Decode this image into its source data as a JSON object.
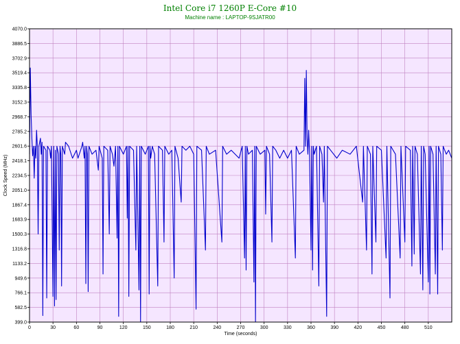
{
  "chart_data": {
    "type": "line",
    "title": "Intel Core i7 1260P E-Core #10",
    "subtitle": "Machine name : LAPTOP-9SJATR00",
    "xlabel": "Time (seconds)",
    "ylabel": "Clock Speed (MHz)",
    "xlim": [
      0,
      540
    ],
    "ylim": [
      399.0,
      4070.0
    ],
    "x_ticks": [
      "0",
      "30",
      "60",
      "90",
      "120",
      "150",
      "180",
      "210",
      "240",
      "270",
      "300",
      "330",
      "360",
      "390",
      "420",
      "450",
      "480",
      "510"
    ],
    "y_ticks": [
      "399.0",
      "582.5",
      "766.1",
      "949.6",
      "1133.2",
      "1316.8",
      "1500.3",
      "1683.9",
      "1867.4",
      "2051.0",
      "2234.5",
      "2418.1",
      "2601.6",
      "2785.2",
      "2968.7",
      "3152.3",
      "3335.8",
      "3519.4",
      "3702.9",
      "3886.5",
      "4070.0"
    ],
    "grid": true,
    "colors": {
      "line": "#0000cc",
      "plot_bg": "#f5e6ff",
      "grid": "#c080c0",
      "title": "#008000"
    },
    "baseline_mhz": 2550,
    "series": [
      {
        "points": [
          [
            0,
            2500
          ],
          [
            1,
            3580
          ],
          [
            2,
            3000
          ],
          [
            3,
            2700
          ],
          [
            4,
            2480
          ],
          [
            5,
            2600
          ],
          [
            6,
            2200
          ],
          [
            7,
            2600
          ],
          [
            8,
            2450
          ],
          [
            9,
            2800
          ],
          [
            10,
            2600
          ],
          [
            11,
            1500
          ],
          [
            12,
            2600
          ],
          [
            14,
            2700
          ],
          [
            15,
            2500
          ],
          [
            16,
            2650
          ],
          [
            17,
            480
          ],
          [
            18,
            2600
          ],
          [
            21,
            2550
          ],
          [
            22,
            700
          ],
          [
            23,
            2600
          ],
          [
            26,
            2550
          ],
          [
            27,
            2450
          ],
          [
            28,
            2600
          ],
          [
            30,
            720
          ],
          [
            31,
            2600
          ],
          [
            32,
            600
          ],
          [
            33,
            2550
          ],
          [
            34,
            680
          ],
          [
            35,
            2600
          ],
          [
            37,
            2500
          ],
          [
            38,
            1300
          ],
          [
            39,
            2600
          ],
          [
            40,
            2500
          ],
          [
            41,
            850
          ],
          [
            42,
            2600
          ],
          [
            45,
            2500
          ],
          [
            46,
            2650
          ],
          [
            50,
            2600
          ],
          [
            55,
            2450
          ],
          [
            60,
            2550
          ],
          [
            62,
            2450
          ],
          [
            67,
            2600
          ],
          [
            68,
            2650
          ],
          [
            70,
            2450
          ],
          [
            71,
            2600
          ],
          [
            72,
            880
          ],
          [
            73,
            2600
          ],
          [
            74,
            2500
          ],
          [
            75,
            780
          ],
          [
            76,
            2600
          ],
          [
            80,
            2500
          ],
          [
            85,
            2550
          ],
          [
            88,
            2300
          ],
          [
            89,
            2600
          ],
          [
            93,
            2450
          ],
          [
            94,
            1000
          ],
          [
            95,
            2600
          ],
          [
            100,
            2550
          ],
          [
            102,
            1500
          ],
          [
            103,
            2600
          ],
          [
            106,
            2500
          ],
          [
            108,
            2350
          ],
          [
            110,
            2600
          ],
          [
            112,
            1450
          ],
          [
            113,
            2600
          ],
          [
            114,
            470
          ],
          [
            115,
            2600
          ],
          [
            120,
            2500
          ],
          [
            124,
            2600
          ],
          [
            125,
            1700
          ],
          [
            126,
            2600
          ],
          [
            127,
            720
          ],
          [
            128,
            2600
          ],
          [
            133,
            2550
          ],
          [
            136,
            1300
          ],
          [
            137,
            2600
          ],
          [
            140,
            800
          ],
          [
            141,
            2600
          ],
          [
            142,
            400
          ],
          [
            143,
            2600
          ],
          [
            148,
            2500
          ],
          [
            152,
            2600
          ],
          [
            153,
            750
          ],
          [
            154,
            2600
          ],
          [
            155,
            2450
          ],
          [
            157,
            2600
          ],
          [
            160,
            2500
          ],
          [
            164,
            850
          ],
          [
            165,
            2600
          ],
          [
            170,
            2550
          ],
          [
            172,
            1400
          ],
          [
            173,
            2600
          ],
          [
            178,
            2500
          ],
          [
            182,
            2550
          ],
          [
            185,
            950
          ],
          [
            186,
            2600
          ],
          [
            190,
            2450
          ],
          [
            194,
            1900
          ],
          [
            195,
            2600
          ],
          [
            200,
            2550
          ],
          [
            205,
            2600
          ],
          [
            210,
            2500
          ],
          [
            213,
            560
          ],
          [
            214,
            2600
          ],
          [
            220,
            2550
          ],
          [
            225,
            1300
          ],
          [
            226,
            2600
          ],
          [
            230,
            2500
          ],
          [
            238,
            2550
          ],
          [
            246,
            1400
          ],
          [
            247,
            2600
          ],
          [
            252,
            2500
          ],
          [
            258,
            2550
          ],
          [
            268,
            2450
          ],
          [
            272,
            2600
          ],
          [
            275,
            1200
          ],
          [
            276,
            2600
          ],
          [
            277,
            1050
          ],
          [
            278,
            2600
          ],
          [
            280,
            2500
          ],
          [
            285,
            2550
          ],
          [
            287,
            900
          ],
          [
            288,
            2600
          ],
          [
            289,
            400
          ],
          [
            290,
            2600
          ],
          [
            295,
            2500
          ],
          [
            301,
            2550
          ],
          [
            302,
            1750
          ],
          [
            303,
            2600
          ],
          [
            307,
            2500
          ],
          [
            310,
            1400
          ],
          [
            311,
            2600
          ],
          [
            315,
            2550
          ],
          [
            320,
            2450
          ],
          [
            325,
            2550
          ],
          [
            330,
            2450
          ],
          [
            335,
            2550
          ],
          [
            340,
            1200
          ],
          [
            341,
            2600
          ],
          [
            345,
            2500
          ],
          [
            351,
            2550
          ],
          [
            352,
            3450
          ],
          [
            353,
            2600
          ],
          [
            354,
            3550
          ],
          [
            355,
            2700
          ],
          [
            356,
            2500
          ],
          [
            357,
            2800
          ],
          [
            358,
            2550
          ],
          [
            360,
            1300
          ],
          [
            361,
            2600
          ],
          [
            362,
            1050
          ],
          [
            363,
            2600
          ],
          [
            364,
            2500
          ],
          [
            367,
            2600
          ],
          [
            370,
            850
          ],
          [
            371,
            2600
          ],
          [
            374,
            2500
          ],
          [
            376,
            1900
          ],
          [
            377,
            2600
          ],
          [
            380,
            470
          ],
          [
            381,
            2600
          ],
          [
            385,
            2550
          ],
          [
            393,
            2450
          ],
          [
            400,
            2550
          ],
          [
            410,
            2500
          ],
          [
            418,
            2600
          ],
          [
            426,
            1900
          ],
          [
            427,
            2600
          ],
          [
            431,
            1300
          ],
          [
            432,
            2600
          ],
          [
            436,
            2500
          ],
          [
            438,
            1000
          ],
          [
            439,
            2600
          ],
          [
            443,
            1400
          ],
          [
            444,
            2600
          ],
          [
            450,
            2550
          ],
          [
            456,
            1200
          ],
          [
            457,
            2600
          ],
          [
            461,
            700
          ],
          [
            462,
            2600
          ],
          [
            468,
            2500
          ],
          [
            474,
            1200
          ],
          [
            475,
            2600
          ],
          [
            480,
            1400
          ],
          [
            481,
            2600
          ],
          [
            487,
            2550
          ],
          [
            489,
            1100
          ],
          [
            490,
            2600
          ],
          [
            492,
            1250
          ],
          [
            493,
            2600
          ],
          [
            496,
            2500
          ],
          [
            500,
            1000
          ],
          [
            501,
            2600
          ],
          [
            503,
            800
          ],
          [
            504,
            2600
          ],
          [
            506,
            2500
          ],
          [
            510,
            900
          ],
          [
            511,
            2600
          ],
          [
            512,
            750
          ],
          [
            513,
            2600
          ],
          [
            516,
            2500
          ],
          [
            519,
            1000
          ],
          [
            520,
            2600
          ],
          [
            522,
            750
          ],
          [
            523,
            2600
          ],
          [
            526,
            2500
          ],
          [
            528,
            1300
          ],
          [
            529,
            2600
          ],
          [
            533,
            2500
          ],
          [
            536,
            2550
          ],
          [
            540,
            2450
          ]
        ]
      }
    ]
  }
}
